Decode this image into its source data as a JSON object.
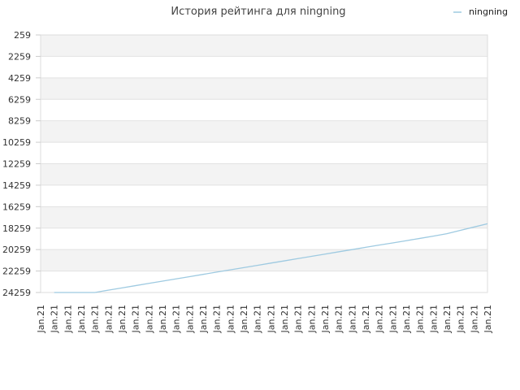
{
  "chart_data": {
    "type": "line",
    "title": "История рейтинга для ningning",
    "legend": {
      "placement": "top-right"
    },
    "y_axis": {
      "reversed": true,
      "range": [
        259,
        24259
      ],
      "tick_labels": [
        "259",
        "2259",
        "4259",
        "6259",
        "8259",
        "10259",
        "12259",
        "14259",
        "16259",
        "18259",
        "20259",
        "22259",
        "24259"
      ],
      "tick_values": [
        259,
        2259,
        4259,
        6259,
        8259,
        10259,
        12259,
        14259,
        16259,
        18259,
        20259,
        22259,
        24259
      ]
    },
    "x_axis": {
      "tick_labels": [
        "Jan.21",
        "Jan.21",
        "Jan.21",
        "Jan.21",
        "Jan.21",
        "Jan.21",
        "Jan.21",
        "Jan.21",
        "Jan.21",
        "Jan.21",
        "Jan.21",
        "Jan.21",
        "Jan.21",
        "Jan.21",
        "Jan.21",
        "Jan.21",
        "Jan.21",
        "Jan.21",
        "Jan.21",
        "Jan.21",
        "Jan.21",
        "Jan.21",
        "Jan.21",
        "Jan.21",
        "Jan.21",
        "Jan.21",
        "Jan.21",
        "Jan.21",
        "Jan.21",
        "Jan.21",
        "Jan.21",
        "Jan.21",
        "Jan.21",
        "Jan.21"
      ]
    },
    "grid": true,
    "band_colors": [
      "#f3f3f3",
      "#ffffff"
    ],
    "series": [
      {
        "name": "ningning",
        "color": "#9ecae1",
        "x_index": [
          1,
          2,
          3,
          4,
          5,
          6,
          7,
          8,
          9,
          10,
          11,
          12,
          13,
          14,
          15,
          16,
          17,
          18,
          19,
          20,
          21,
          22,
          23,
          24,
          25,
          26,
          27,
          28,
          29,
          30,
          31,
          32,
          33
        ],
        "values": [
          24259,
          24259,
          24259,
          24259,
          24039,
          23830,
          23620,
          23410,
          23200,
          22990,
          22780,
          22570,
          22360,
          22150,
          21940,
          21730,
          21520,
          21310,
          21100,
          20890,
          20680,
          20470,
          20260,
          20050,
          19840,
          19640,
          19430,
          19220,
          19010,
          18780,
          18470,
          18160,
          17850
        ]
      }
    ]
  }
}
